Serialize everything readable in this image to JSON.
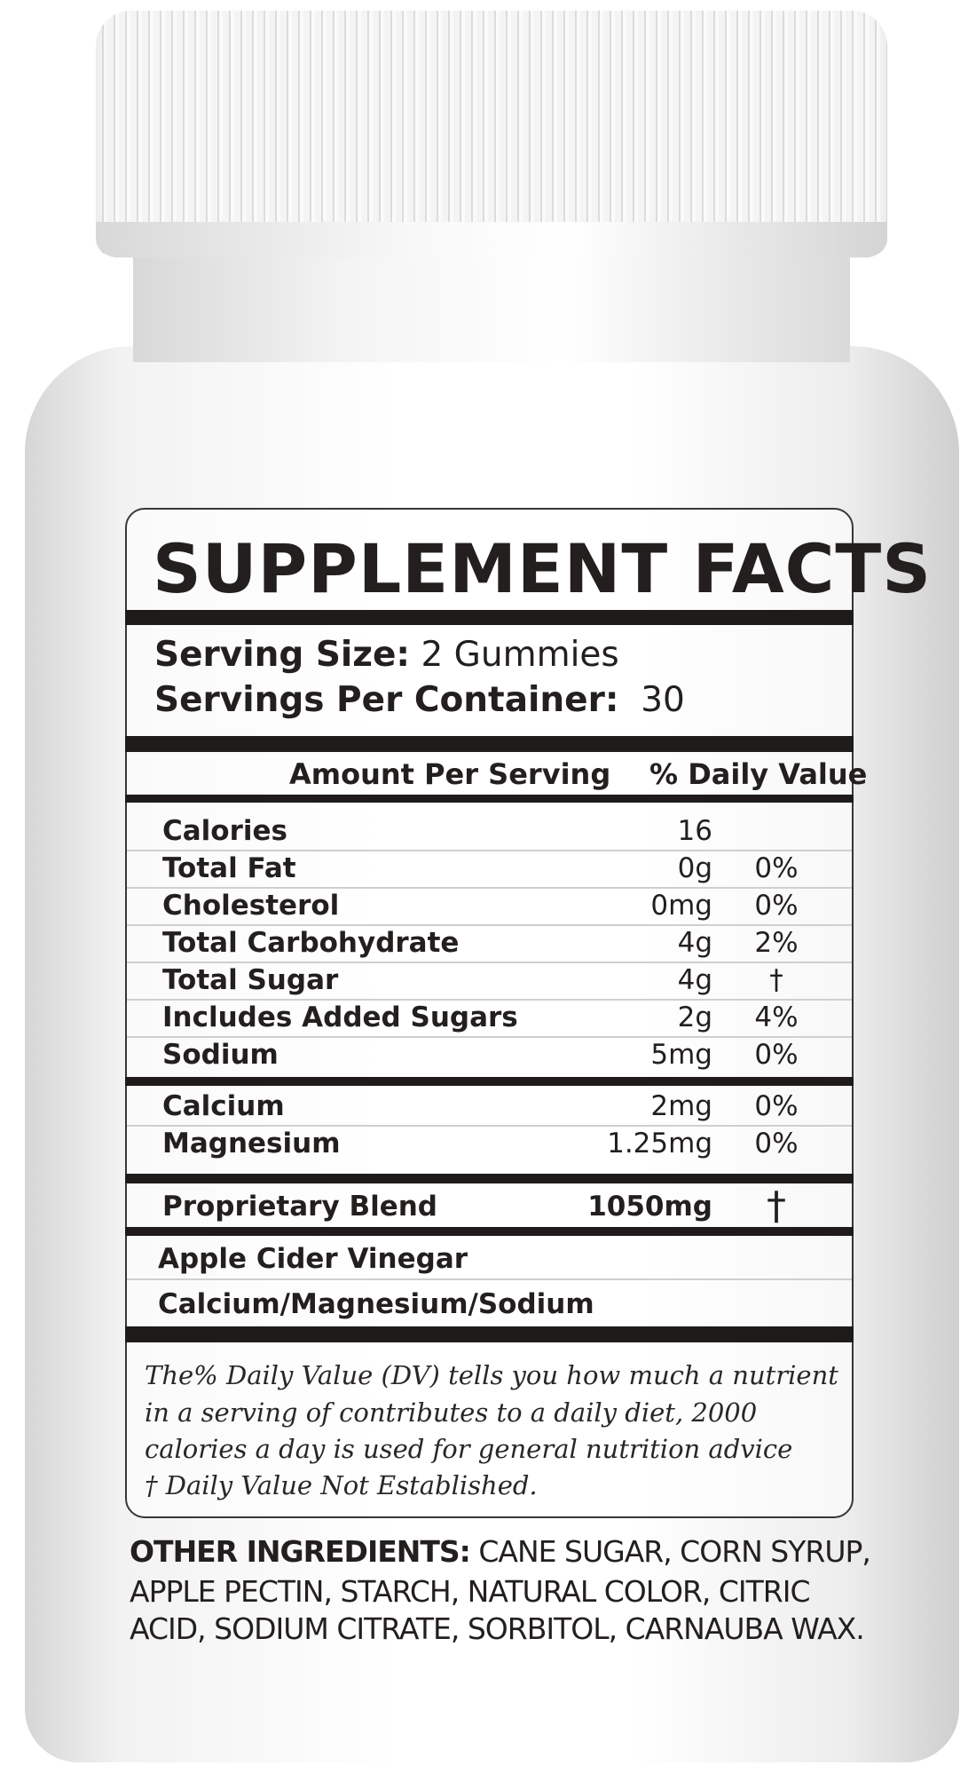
{
  "title": "SUPPLEMENT FACTS",
  "serving": {
    "size_label": "Serving Size:",
    "size_value": "2 Gummies",
    "per_container_label": "Servings Per Container:",
    "per_container_value": "30"
  },
  "header": {
    "amount": "Amount Per Serving",
    "dv": "% Daily Value"
  },
  "nutrients": [
    {
      "name": "Calories",
      "amount": "16",
      "dv": ""
    },
    {
      "name": "Total Fat",
      "amount": "0g",
      "dv": "0%"
    },
    {
      "name": "Cholesterol",
      "amount": "0mg",
      "dv": "0%"
    },
    {
      "name": "Total Carbohydrate",
      "amount": "4g",
      "dv": "2%"
    },
    {
      "name": "Total Sugar",
      "amount": "4g",
      "dv": "†"
    },
    {
      "name": "Includes Added Sugars",
      "amount": "2g",
      "dv": "4%"
    },
    {
      "name": "Sodium",
      "amount": "5mg",
      "dv": "0%"
    },
    {
      "name": "Calcium",
      "amount": "2mg",
      "dv": "0%"
    },
    {
      "name": "Magnesium",
      "amount": "1.25mg",
      "dv": "0%"
    }
  ],
  "blend": {
    "name": "Proprietary Blend",
    "amount": "1050mg",
    "dv": "†",
    "ingredients": [
      "Apple Cider Vinegar",
      "Calcium/Magnesium/Sodium"
    ]
  },
  "footnote": [
    "The% Daily Value (DV) tells you how much a nutrient",
    "in a serving of contributes to a daily diet, 2000",
    "calories a day is used for general nutrition advice",
    "† Daily Value Not Established."
  ],
  "other_ingredients": {
    "label": "OTHER INGREDIENTS:",
    "lines": [
      "CANE SUGAR, CORN SYRUP,",
      "APPLE PECTIN, STARCH, NATURAL COLOR, CITRIC",
      "ACID, SODIUM CITRATE, SORBITOL, CARNAUBA WAX."
    ]
  }
}
